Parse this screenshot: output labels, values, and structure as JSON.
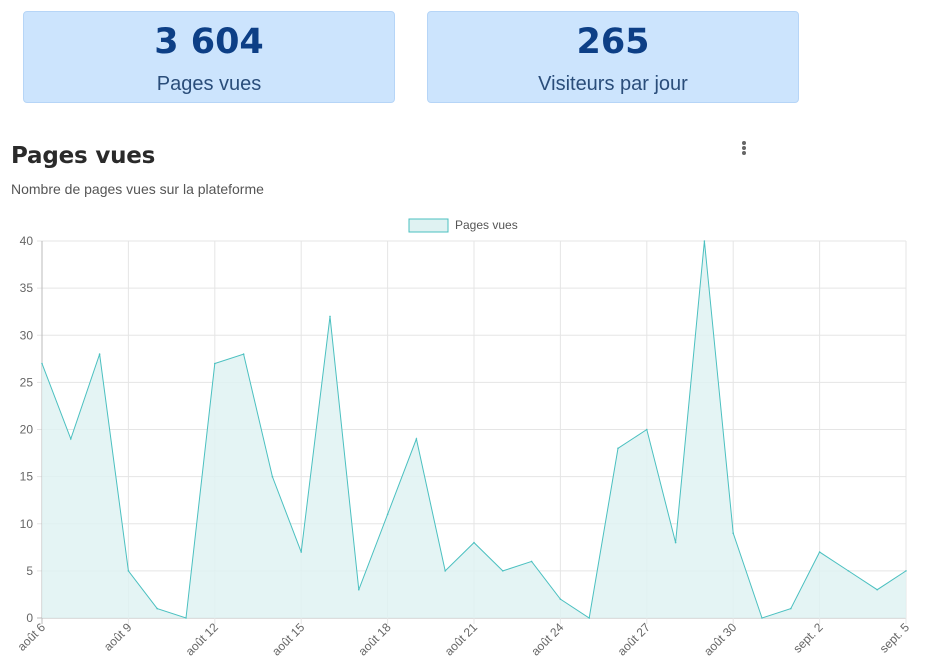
{
  "stats": [
    {
      "value": "3 604",
      "label": "Pages vues"
    },
    {
      "value": "265",
      "label": "Visiteurs par jour"
    }
  ],
  "section": {
    "title": "Pages vues",
    "subtitle": "Nombre de pages vues sur la plateforme",
    "menu_icon": "more-vertical-icon"
  },
  "colors": {
    "card_bg": "#cce4fd",
    "stat_value": "#0d3f86",
    "series_line": "#4bc0c0",
    "series_fill": "#dff2f2"
  },
  "chart_data": {
    "type": "area",
    "legend": {
      "position": "top-center",
      "entries": [
        "Pages vues"
      ]
    },
    "x": [
      "août 6",
      "août 7",
      "août 8",
      "août 9",
      "août 10",
      "août 11",
      "août 12",
      "août 13",
      "août 14",
      "août 15",
      "août 16",
      "août 17",
      "août 18",
      "août 19",
      "août 20",
      "août 21",
      "août 22",
      "août 23",
      "août 24",
      "août 25",
      "août 26",
      "août 27",
      "août 28",
      "août 29",
      "août 30",
      "août 31",
      "sept. 1",
      "sept. 2",
      "sept. 3",
      "sept. 4",
      "sept. 5"
    ],
    "tick_labels": [
      "août 6",
      "août 9",
      "août 12",
      "août 15",
      "août 18",
      "août 21",
      "août 24",
      "août 27",
      "août 30",
      "sept. 2",
      "sept. 5"
    ],
    "series": [
      {
        "name": "Pages vues",
        "values": [
          27,
          19,
          28,
          5,
          1,
          0,
          27,
          28,
          15,
          7,
          32,
          3,
          11,
          19,
          5,
          8,
          5,
          6,
          2,
          0,
          18,
          20,
          8,
          40,
          9,
          0,
          1,
          7,
          5,
          3,
          5
        ]
      }
    ],
    "ylim": [
      0,
      40
    ],
    "yticks": [
      0,
      5,
      10,
      15,
      20,
      25,
      30,
      35,
      40
    ],
    "grid": true
  }
}
